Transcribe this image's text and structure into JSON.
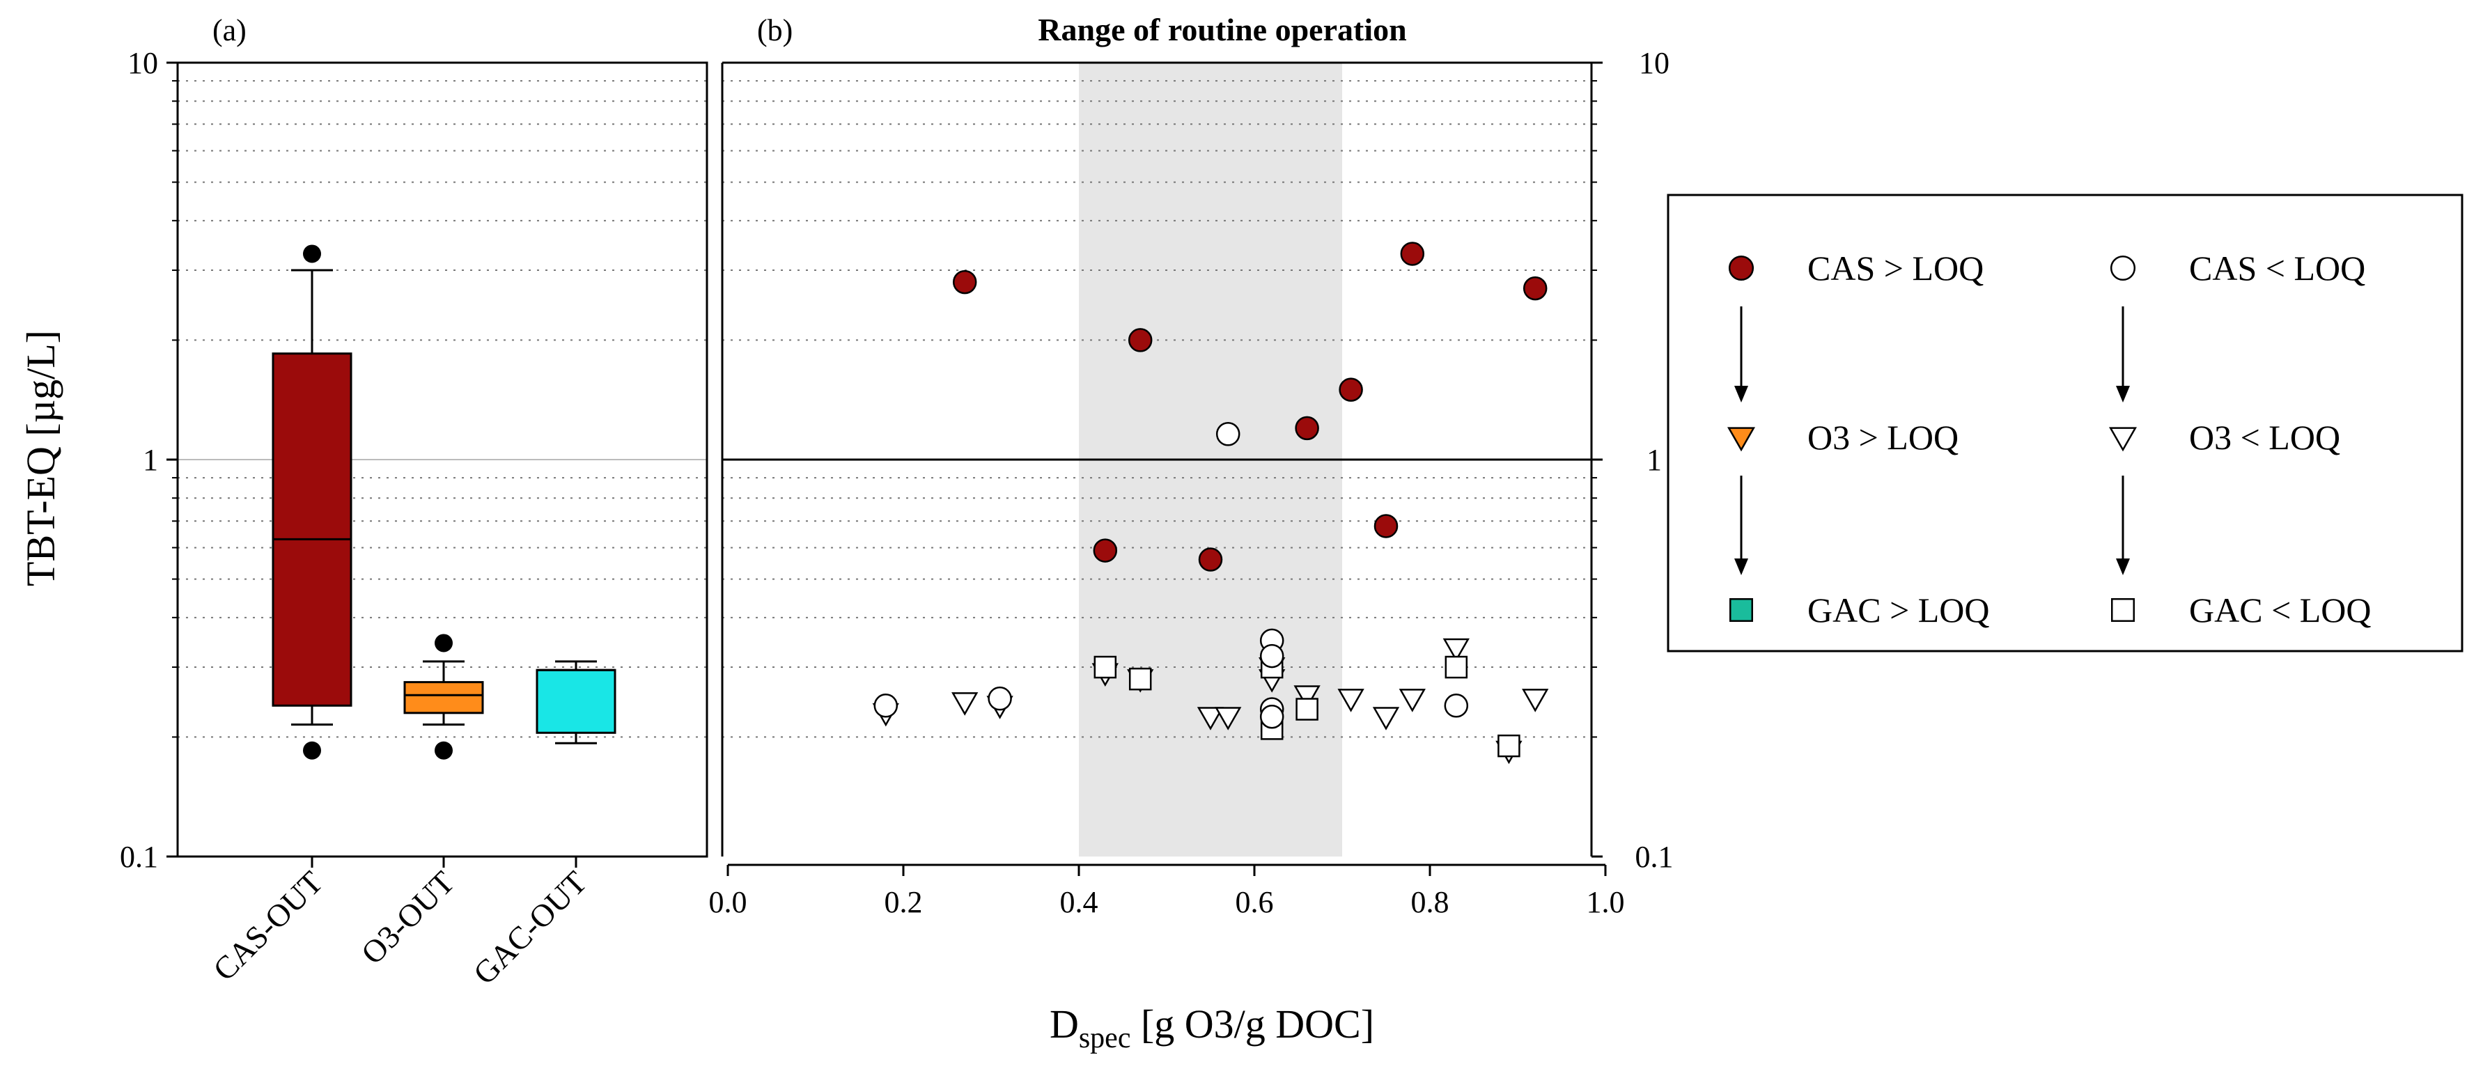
{
  "chart_data": [
    {
      "panel": "a",
      "type": "box",
      "panel_label": "(a)",
      "ylabel": "TBT-EQ [µg/L]",
      "yscale": "log",
      "ylim": [
        0.1,
        10
      ],
      "ytick_labels": [
        "10",
        "1",
        "0.1"
      ],
      "ytick_values": [
        10,
        1,
        0.1
      ],
      "categories": [
        "CAS-OUT",
        "O3-OUT",
        "GAC-OUT"
      ],
      "boxes": [
        {
          "name": "CAS-OUT",
          "color": "#9B0B0B",
          "whisker_low": 0.215,
          "q1": 0.24,
          "median": 0.63,
          "q3": 1.85,
          "whisker_high": 3.0,
          "outliers": [
            3.3,
            0.185
          ]
        },
        {
          "name": "O3-OUT",
          "color": "#FF8C1A",
          "whisker_low": 0.215,
          "q1": 0.23,
          "median": 0.255,
          "q3": 0.275,
          "whisker_high": 0.31,
          "outliers": [
            0.345,
            0.185
          ]
        },
        {
          "name": "GAC-OUT",
          "color": "#19E6E6",
          "whisker_low": 0.193,
          "q1": 0.205,
          "median": 0.295,
          "q3": 0.295,
          "whisker_high": 0.31,
          "outliers": []
        }
      ]
    },
    {
      "panel": "b",
      "type": "scatter",
      "panel_label": "(b)",
      "title": "Range of routine operation",
      "xlabel_main": "D",
      "xlabel_sub": "spec",
      "xlabel_rest": " [g O3/g DOC]",
      "xlim": [
        0.0,
        1.0
      ],
      "xtick_labels": [
        "0.0",
        "0.2",
        "0.4",
        "0.6",
        "0.8",
        "1.0"
      ],
      "xtick_values": [
        0.0,
        0.2,
        0.4,
        0.6,
        0.8,
        1.0
      ],
      "yscale": "log",
      "ylim": [
        0.1,
        10
      ],
      "ytick_labels": [
        "10",
        "1",
        "0.1"
      ],
      "ytick_values": [
        10,
        1,
        0.1
      ],
      "shaded_range": [
        0.4,
        0.7
      ],
      "series": [
        {
          "name": "CAS > LOQ",
          "marker": "circle",
          "fill": "#9B0B0B",
          "x": [
            0.27,
            0.47,
            0.43,
            0.55,
            0.66,
            0.71,
            0.75,
            0.78,
            0.92
          ],
          "y": [
            2.8,
            2.0,
            0.59,
            0.56,
            1.2,
            1.5,
            0.68,
            3.3,
            2.7
          ]
        },
        {
          "name": "CAS < LOQ",
          "marker": "circle",
          "fill": "#ffffff",
          "x": [
            0.18,
            0.31,
            0.57,
            0.62,
            0.62,
            0.62,
            0.62,
            0.83
          ],
          "y": [
            0.24,
            0.25,
            1.16,
            0.35,
            0.32,
            0.235,
            0.225,
            0.24
          ]
        },
        {
          "name": "O3 > LOQ",
          "marker": "triangle-down",
          "fill": "#FF8C1A",
          "x": [],
          "y": []
        },
        {
          "name": "O3 < LOQ",
          "marker": "triangle-down",
          "fill": "#ffffff",
          "x": [
            0.18,
            0.27,
            0.31,
            0.43,
            0.47,
            0.55,
            0.57,
            0.62,
            0.62,
            0.66,
            0.71,
            0.75,
            0.78,
            0.83,
            0.89,
            0.92
          ],
          "y": [
            0.23,
            0.245,
            0.24,
            0.29,
            0.28,
            0.225,
            0.225,
            0.3,
            0.28,
            0.255,
            0.25,
            0.225,
            0.25,
            0.335,
            0.185,
            0.25
          ]
        },
        {
          "name": "GAC > LOQ",
          "marker": "square",
          "fill": "#1ABC9C",
          "x": [],
          "y": []
        },
        {
          "name": "GAC < LOQ",
          "marker": "square",
          "fill": "#ffffff",
          "x": [
            0.43,
            0.47,
            0.62,
            0.62,
            0.62,
            0.66,
            0.83,
            0.89
          ],
          "y": [
            0.3,
            0.28,
            0.3,
            0.22,
            0.21,
            0.235,
            0.3,
            0.19
          ]
        }
      ]
    }
  ],
  "legend": {
    "placement": "right",
    "entries": [
      {
        "label": "CAS > LOQ",
        "marker": "circle",
        "fill": "#9B0B0B"
      },
      {
        "label": "CAS < LOQ",
        "marker": "circle",
        "fill": "#ffffff"
      },
      {
        "label": "O3 > LOQ",
        "marker": "triangle-down",
        "fill": "#FF8C1A"
      },
      {
        "label": "O3 < LOQ",
        "marker": "triangle-down",
        "fill": "#ffffff"
      },
      {
        "label": "GAC > LOQ",
        "marker": "square",
        "fill": "#1ABC9C"
      },
      {
        "label": "GAC < LOQ",
        "marker": "square",
        "fill": "#ffffff"
      }
    ]
  }
}
